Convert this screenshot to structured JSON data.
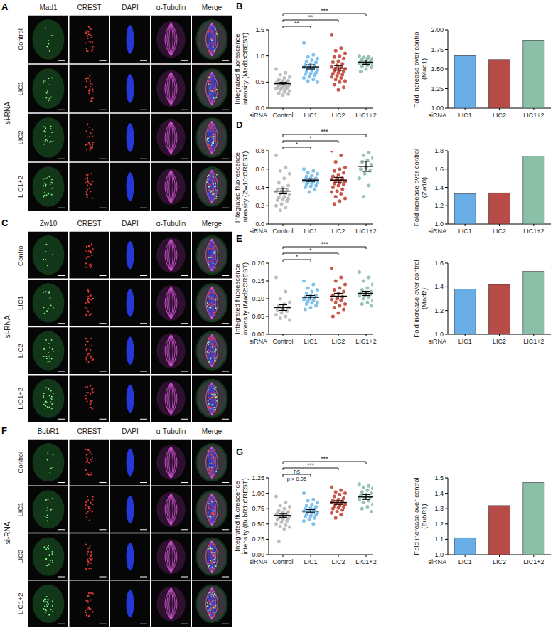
{
  "image_panels": [
    {
      "label": "A",
      "channels": [
        "Mad1",
        "CREST",
        "DAPI",
        "α-Tubulin",
        "Merge"
      ],
      "rows": [
        "Control",
        "LIC1",
        "LIC2",
        "LIC1+2"
      ],
      "group": "si-RNA"
    },
    {
      "label": "C",
      "channels": [
        "Zw10",
        "CREST",
        "DAPI",
        "α-Tubulin",
        "Merge"
      ],
      "rows": [
        "Control",
        "LIC1",
        "LIC2",
        "LIC1+2"
      ],
      "group": "si-RNA"
    },
    {
      "label": "F",
      "channels": [
        "BubR1",
        "CREST",
        "DAPI",
        "α-Tubulin",
        "Merge"
      ],
      "rows": [
        "Control",
        "LIC1",
        "LIC2",
        "LIC1+2"
      ],
      "group": "si-RNA"
    }
  ],
  "chart_data": [
    {
      "type": "strip",
      "panel": "B",
      "categories": [
        "Control",
        "LIC1",
        "LIC2",
        "LIC1+2"
      ],
      "colors": [
        "#b3b3b3",
        "#6db6e8",
        "#c0392b",
        "#86b9a2"
      ],
      "points": [
        [
          0.75,
          0.68,
          0.64,
          0.6,
          0.58,
          0.55,
          0.53,
          0.52,
          0.5,
          0.5,
          0.49,
          0.48,
          0.47,
          0.46,
          0.45,
          0.44,
          0.43,
          0.42,
          0.41,
          0.4,
          0.39,
          0.38,
          0.37,
          0.36,
          0.35,
          0.33,
          0.31,
          0.29,
          0.27,
          0.25
        ],
        [
          1.25,
          1.02,
          0.98,
          0.95,
          0.92,
          0.9,
          0.88,
          0.85,
          0.83,
          0.82,
          0.8,
          0.78,
          0.76,
          0.75,
          0.73,
          0.72,
          0.7,
          0.68,
          0.66,
          0.65,
          0.63,
          0.6,
          0.58,
          0.55,
          0.52,
          0.5
        ],
        [
          1.4,
          1.15,
          1.1,
          1.05,
          1.0,
          0.98,
          0.95,
          0.9,
          0.88,
          0.85,
          0.82,
          0.8,
          0.78,
          0.76,
          0.75,
          0.73,
          0.72,
          0.7,
          0.68,
          0.66,
          0.64,
          0.62,
          0.6,
          0.58,
          0.55,
          0.52,
          0.5,
          0.45,
          0.4,
          0.35
        ],
        [
          1.0,
          0.98,
          0.97,
          0.95,
          0.95,
          0.93,
          0.92,
          0.9,
          0.9,
          0.88,
          0.87,
          0.86,
          0.85,
          0.85,
          0.83,
          0.82,
          0.8,
          0.78,
          0.75,
          0.7
        ]
      ],
      "values": [
        0.47,
        0.79,
        0.77,
        0.88
      ],
      "errors": [
        0.025,
        0.04,
        0.045,
        0.04
      ],
      "xlabel": "siRNA",
      "ylabel": "Integrated fluorescence intensity (Mad1:CREST)",
      "ylim": [
        0,
        1.5
      ],
      "yticks": [
        {
          "value": 0,
          "label": "0.0"
        },
        0.5,
        {
          "value": 1,
          "label": "1.0"
        },
        1.5
      ],
      "annotations": [
        {
          "between": [
            "Control",
            "LIC1"
          ],
          "text": "**"
        },
        {
          "between": [
            "Control",
            "LIC2"
          ],
          "text": "**"
        },
        {
          "between": [
            "Control",
            "LIC1+2"
          ],
          "text": "***"
        }
      ]
    },
    {
      "type": "bar",
      "categories": [
        "LIC1",
        "LIC2",
        "LIC1+2"
      ],
      "values": [
        1.67,
        1.62,
        1.87
      ],
      "colors": [
        "#6aaee8",
        "#b84a48",
        "#8cbfa8"
      ],
      "xlabel": "siRNA",
      "ylabel": "Fold increase over control (Mad1)",
      "ylim": [
        1,
        2
      ],
      "yticks": [
        {
          "value": 1,
          "label": "1.00"
        },
        1.25,
        {
          "value": 1.5,
          "label": "1.50"
        },
        1.75,
        {
          "value": 2,
          "label": "2.00"
        }
      ]
    },
    {
      "type": "strip",
      "panel": "D",
      "categories": [
        "Control",
        "LIC1",
        "LIC2",
        "LIC1+2"
      ],
      "colors": [
        "#b3b3b3",
        "#6db6e8",
        "#c0392b",
        "#86b9a2"
      ],
      "points": [
        [
          0.75,
          0.62,
          0.58,
          0.55,
          0.5,
          0.45,
          0.42,
          0.4,
          0.38,
          0.37,
          0.36,
          0.35,
          0.34,
          0.33,
          0.32,
          0.3,
          0.29,
          0.28,
          0.27,
          0.26,
          0.25,
          0.22,
          0.2,
          0.18,
          0.15
        ],
        [
          0.6,
          0.58,
          0.56,
          0.55,
          0.53,
          0.52,
          0.5,
          0.5,
          0.49,
          0.48,
          0.48,
          0.47,
          0.46,
          0.45,
          0.45,
          0.44,
          0.43,
          0.42,
          0.41,
          0.4,
          0.38,
          0.35
        ],
        [
          0.8,
          0.75,
          0.68,
          0.62,
          0.6,
          0.58,
          0.56,
          0.54,
          0.52,
          0.5,
          0.5,
          0.49,
          0.48,
          0.47,
          0.46,
          0.45,
          0.44,
          0.43,
          0.42,
          0.4,
          0.38,
          0.36,
          0.35,
          0.33,
          0.3,
          0.28,
          0.25,
          0.22
        ],
        [
          0.82,
          0.78,
          0.75,
          0.72,
          0.7,
          0.68,
          0.65,
          0.62,
          0.6,
          0.58,
          0.55,
          0.5,
          0.42,
          0.3
        ]
      ],
      "values": [
        0.36,
        0.48,
        0.48,
        0.63
      ],
      "errors": [
        0.03,
        0.015,
        0.03,
        0.055
      ],
      "xlabel": "siRNA",
      "ylabel": "Integrated fluorescence intensity (Zw10:CREST)",
      "ylim": [
        0,
        0.8
      ],
      "yticks": [
        {
          "value": 0,
          "label": "0.0"
        },
        0.2,
        0.4,
        0.6,
        0.8
      ],
      "annotations": [
        {
          "between": [
            "Control",
            "LIC1"
          ],
          "text": "*"
        },
        {
          "between": [
            "Control",
            "LIC2"
          ],
          "text": "*"
        },
        {
          "between": [
            "Control",
            "LIC1+2"
          ],
          "text": "***"
        }
      ]
    },
    {
      "type": "bar",
      "categories": [
        "LIC1",
        "LIC2",
        "LIC1+2"
      ],
      "values": [
        1.33,
        1.34,
        1.74
      ],
      "colors": [
        "#6aaee8",
        "#b84a48",
        "#8cbfa8"
      ],
      "xlabel": "siRNA",
      "ylabel": "Fold increase over control (Zw10)",
      "ylim": [
        1,
        1.8
      ],
      "yticks": [
        {
          "value": 1,
          "label": "1.0"
        },
        1.2,
        1.4,
        1.6,
        1.8
      ]
    },
    {
      "type": "strip",
      "panel": "E",
      "categories": [
        "Control",
        "LIC1",
        "LIC2",
        "LIC1+2"
      ],
      "colors": [
        "#b3b3b3",
        "#6db6e8",
        "#c0392b",
        "#86b9a2"
      ],
      "points": [
        [
          0.16,
          0.12,
          0.1,
          0.09,
          0.085,
          0.08,
          0.075,
          0.07,
          0.068,
          0.065,
          0.06,
          0.055,
          0.05,
          0.045,
          0.04
        ],
        [
          0.15,
          0.14,
          0.13,
          0.125,
          0.12,
          0.115,
          0.11,
          0.108,
          0.105,
          0.102,
          0.1,
          0.098,
          0.095,
          0.092,
          0.09,
          0.088,
          0.085,
          0.08,
          0.075,
          0.07
        ],
        [
          0.185,
          0.16,
          0.15,
          0.14,
          0.13,
          0.125,
          0.12,
          0.115,
          0.11,
          0.105,
          0.1,
          0.098,
          0.095,
          0.09,
          0.085,
          0.08,
          0.075,
          0.07,
          0.06,
          0.05
        ],
        [
          0.175,
          0.16,
          0.15,
          0.14,
          0.13,
          0.125,
          0.12,
          0.118,
          0.115,
          0.112,
          0.11,
          0.108,
          0.105,
          0.1,
          0.095,
          0.09,
          0.085,
          0.08
        ]
      ],
      "values": [
        0.075,
        0.104,
        0.107,
        0.115
      ],
      "errors": [
        0.008,
        0.005,
        0.008,
        0.006
      ],
      "xlabel": "siRNA",
      "ylabel": "Integrated fluorescence intensity (Mad2:CREST)",
      "ylim": [
        0,
        0.2
      ],
      "yticks": [
        {
          "value": 0,
          "label": "0.00"
        },
        0.05,
        {
          "value": 0.1,
          "label": "0.10"
        },
        0.15,
        {
          "value": 0.2,
          "label": "0.20"
        }
      ],
      "annotations": [
        {
          "between": [
            "Control",
            "LIC1"
          ],
          "text": "*"
        },
        {
          "between": [
            "Control",
            "LIC2"
          ],
          "text": "*"
        },
        {
          "between": [
            "Control",
            "LIC1+2"
          ],
          "text": "***"
        }
      ]
    },
    {
      "type": "bar",
      "categories": [
        "LIC1",
        "LIC2",
        "LIC1+2"
      ],
      "values": [
        1.38,
        1.42,
        1.53
      ],
      "colors": [
        "#6aaee8",
        "#b84a48",
        "#8cbfa8"
      ],
      "xlabel": "siRNA",
      "ylabel": "Fold increase over control (Mad2)",
      "ylim": [
        1,
        1.6
      ],
      "yticks": [
        {
          "value": 1,
          "label": "1.0"
        },
        1.2,
        1.4,
        1.6
      ]
    },
    {
      "type": "strip",
      "panel": "G",
      "categories": [
        "Control",
        "LIC1",
        "LIC2",
        "LIC1+2"
      ],
      "colors": [
        "#b3b3b3",
        "#6db6e8",
        "#c0392b",
        "#86b9a2"
      ],
      "points": [
        [
          0.95,
          0.85,
          0.8,
          0.78,
          0.75,
          0.72,
          0.7,
          0.69,
          0.68,
          0.67,
          0.66,
          0.65,
          0.64,
          0.63,
          0.62,
          0.61,
          0.6,
          0.59,
          0.58,
          0.57,
          0.55,
          0.53,
          0.5,
          0.48,
          0.46,
          0.45,
          0.42,
          0.22
        ],
        [
          1.0,
          0.9,
          0.88,
          0.85,
          0.82,
          0.8,
          0.78,
          0.76,
          0.75,
          0.74,
          0.72,
          0.71,
          0.7,
          0.69,
          0.68,
          0.67,
          0.66,
          0.65,
          0.63,
          0.62,
          0.6,
          0.58,
          0.55,
          0.5
        ],
        [
          1.1,
          1.05,
          1.02,
          1.0,
          0.98,
          0.95,
          0.92,
          0.9,
          0.88,
          0.87,
          0.86,
          0.85,
          0.84,
          0.83,
          0.82,
          0.8,
          0.79,
          0.78,
          0.76,
          0.75,
          0.73,
          0.7,
          0.68,
          0.65,
          0.6
        ],
        [
          1.15,
          1.12,
          1.1,
          1.08,
          1.05,
          1.02,
          1.0,
          0.98,
          0.96,
          0.94,
          0.92,
          0.9,
          0.88,
          0.85,
          0.82,
          0.78,
          0.75,
          0.7
        ]
      ],
      "values": [
        0.64,
        0.71,
        0.85,
        0.94
      ],
      "errors": [
        0.03,
        0.025,
        0.03,
        0.04
      ],
      "xlabel": "siRNA",
      "ylabel": "Integrated fluorescence intensity (BubR1:CREST)",
      "ylim": [
        0,
        1.25
      ],
      "yticks": [
        {
          "value": 0,
          "label": "0.00"
        },
        0.25,
        {
          "value": 0.5,
          "label": "0.50"
        },
        0.75,
        {
          "value": 1,
          "label": "1.00"
        },
        1.25
      ],
      "annotations": [
        {
          "between": [
            "Control",
            "LIC1"
          ],
          "text": "ns",
          "note": "p > 0.05"
        },
        {
          "between": [
            "Control",
            "LIC2"
          ],
          "text": "***"
        },
        {
          "between": [
            "Control",
            "LIC1+2"
          ],
          "text": "***"
        }
      ]
    },
    {
      "type": "bar",
      "categories": [
        "LIC1",
        "LIC2",
        "LIC1+2"
      ],
      "values": [
        1.11,
        1.32,
        1.47
      ],
      "colors": [
        "#6aaee8",
        "#b84a48",
        "#8cbfa8"
      ],
      "xlabel": "siRNA",
      "ylabel": "Fold increase over control (BubR1)",
      "ylim": [
        1,
        1.5
      ],
      "yticks": [
        {
          "value": 1,
          "label": "1.0"
        },
        1.1,
        1.2,
        1.3,
        1.4,
        1.5
      ]
    }
  ]
}
